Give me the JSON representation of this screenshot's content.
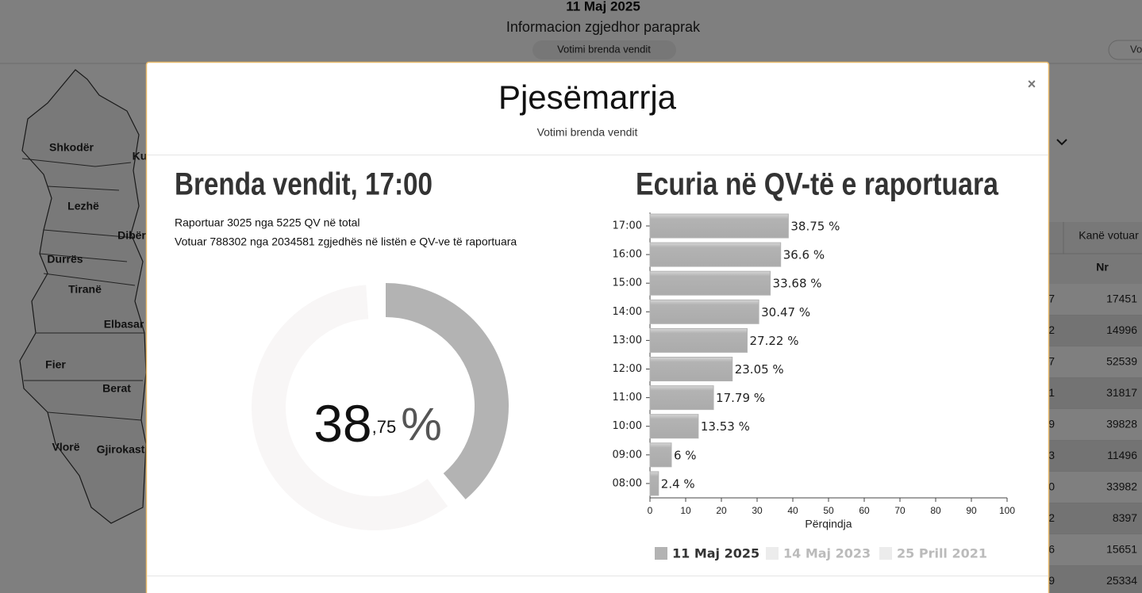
{
  "background": {
    "header": {
      "date": "11 Maj 2025",
      "subtitle": "Informacion zgjedhor paraprak",
      "button": "Votimi brenda vendit",
      "partial_button": "Vo"
    },
    "map": {
      "labels": [
        "Shkodër",
        "Ku",
        "Lezhë",
        "Dibër",
        "Durrës",
        "Tiranë",
        "Elbasar",
        "Fier",
        "Berat",
        "Vlorë",
        "Gjirokast"
      ]
    },
    "table": {
      "header": [
        "Kanë votuar",
        "Nr"
      ],
      "rows": [
        [
          "7",
          "17451"
        ],
        [
          "2",
          "14996"
        ],
        [
          "7",
          "52539"
        ],
        [
          "1",
          "31817"
        ],
        [
          "9",
          "39828"
        ],
        [
          "3",
          "11496"
        ],
        [
          "0",
          "33982"
        ],
        [
          "2",
          "8397"
        ],
        [
          "6",
          "15651"
        ],
        [
          "9",
          "25334"
        ]
      ]
    }
  },
  "modal": {
    "title": "Pjesëmarrja",
    "subtitle": "Votimi brenda vendit",
    "close": "×",
    "left_heading": "Brenda vendit, 17:00",
    "lines": [
      "Raportuar 3025 nga 5225 QV në total",
      "Votuar 788302 nga 2034581 zgjedhës në listën e QV-ve të raportuara"
    ],
    "right_heading": "Ecuria në QV-të e raportuara"
  },
  "chart_data": [
    {
      "type": "donut",
      "values": [
        38.75
      ],
      "color": "#b3b3b3",
      "track_color": "#f8f6f6",
      "center_label": {
        "integer": "38",
        "decimal": ",75",
        "unit": "%"
      }
    },
    {
      "type": "bar",
      "orientation": "horizontal",
      "categories": [
        "17:00",
        "16:00",
        "15:00",
        "14:00",
        "13:00",
        "12:00",
        "11:00",
        "10:00",
        "09:00",
        "08:00"
      ],
      "series": [
        {
          "name": "11 Maj 2025",
          "color": "#b3b3b3",
          "values": [
            38.75,
            36.6,
            33.68,
            30.47,
            27.22,
            23.05,
            17.79,
            13.53,
            6,
            2.4
          ],
          "value_labels": [
            "38.75 %",
            "36.6 %",
            "33.68 %",
            "30.47 %",
            "27.22 %",
            "23.05 %",
            "17.79 %",
            "13.53 %",
            "6 %",
            "2.4 %"
          ]
        }
      ],
      "inactive_series": [
        {
          "name": "14 Maj 2023",
          "color": "#ececec"
        },
        {
          "name": "25 Prill 2021",
          "color": "#ececec"
        }
      ],
      "xlim": [
        0,
        100
      ],
      "xticks": [
        0,
        10,
        20,
        30,
        40,
        50,
        60,
        70,
        80,
        90,
        100
      ],
      "xlabel": "Përqindja"
    }
  ]
}
